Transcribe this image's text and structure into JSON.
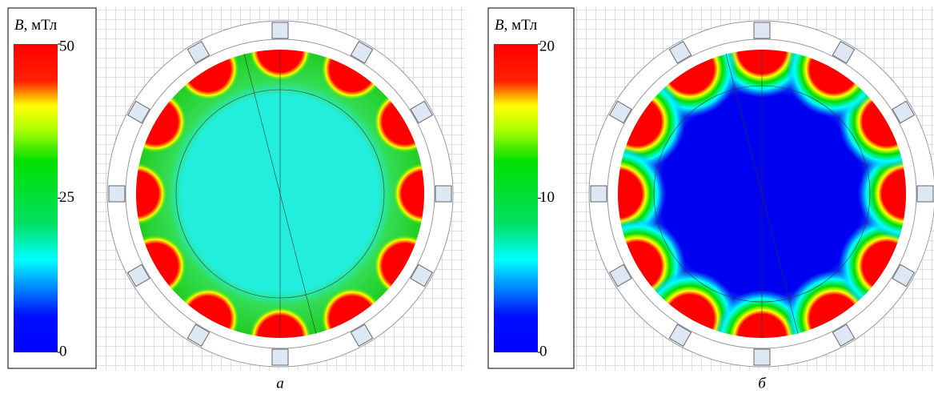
{
  "panels": [
    {
      "colorbar": {
        "symbol": "B",
        "unit": ", мТл",
        "lim": [
          0,
          50
        ],
        "ticks": [
          0,
          25,
          50
        ]
      },
      "caption": "а"
    },
    {
      "colorbar": {
        "symbol": "B",
        "unit": ", мТл",
        "lim": [
          0,
          20
        ],
        "ticks": [
          0,
          10,
          20
        ]
      },
      "caption": "б"
    }
  ]
}
